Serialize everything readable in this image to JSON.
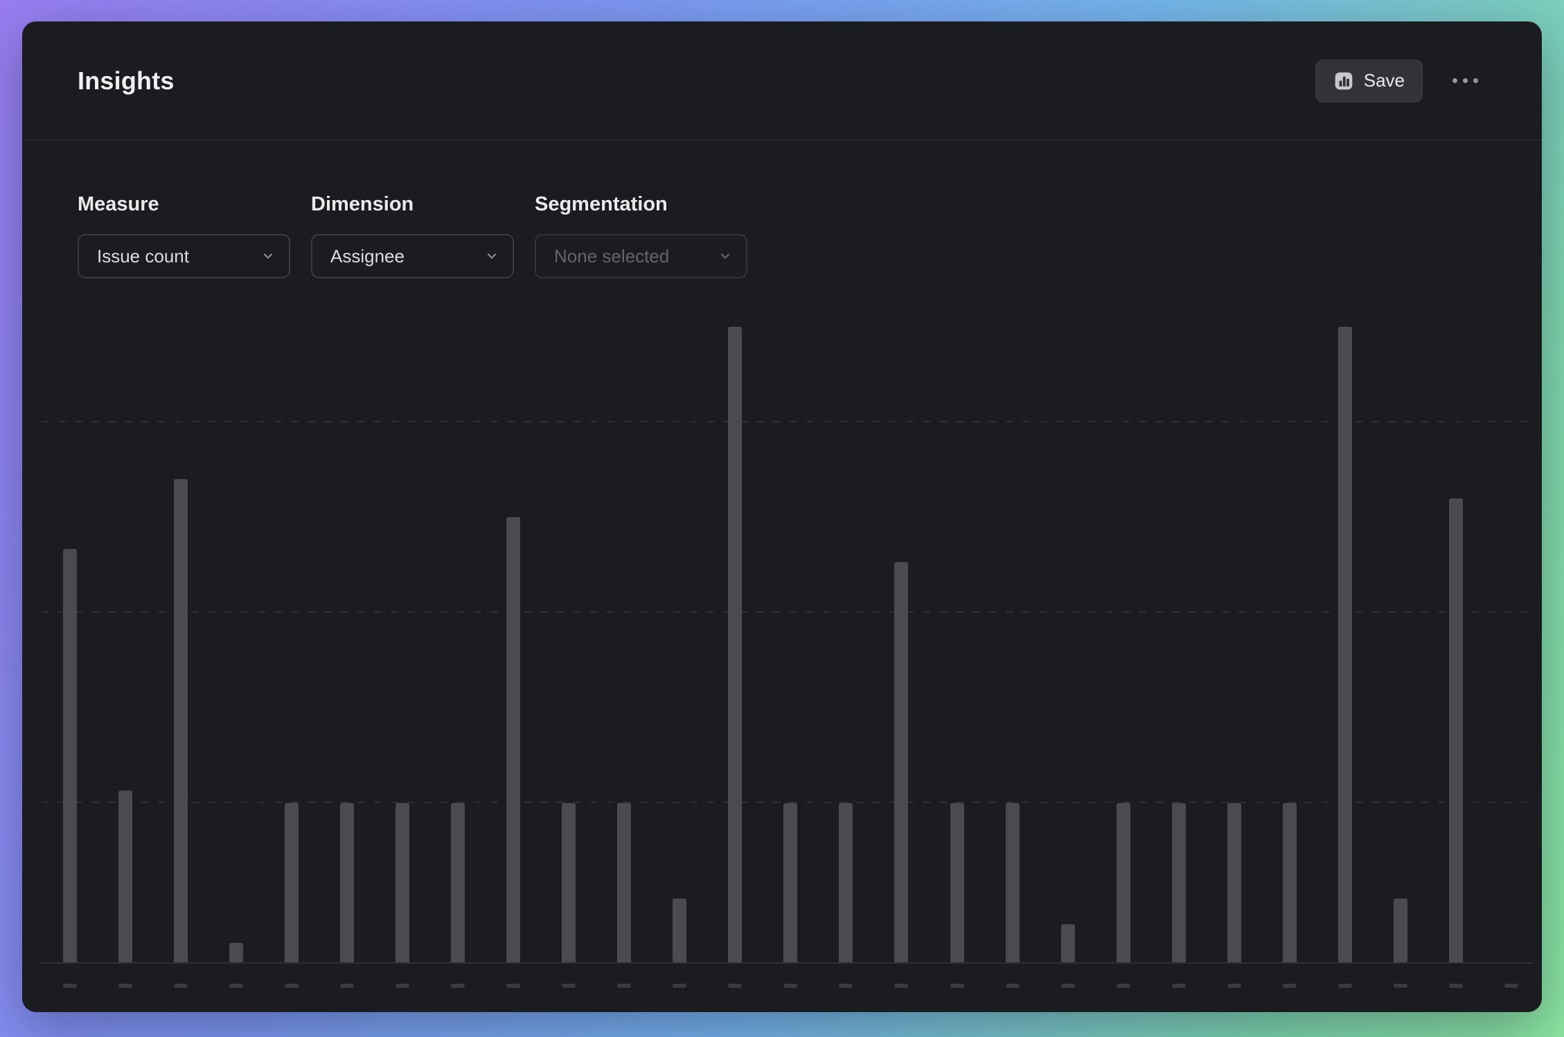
{
  "header": {
    "title": "Insights",
    "save_label": "Save"
  },
  "controls": {
    "measure": {
      "label": "Measure",
      "value": "Issue count"
    },
    "dimension": {
      "label": "Dimension",
      "value": "Assignee"
    },
    "segmentation": {
      "label": "Segmentation",
      "value": "None selected",
      "muted": true
    }
  },
  "icons": {
    "save": "bar-chart-icon",
    "more": "ellipsis-icon",
    "dropdowns": "chevron-down-icon"
  },
  "colors": {
    "panel_bg": "#1b1c1f",
    "divider": "#2b2d31",
    "bar": "#4a4b4f",
    "gridline": "#2e3034",
    "tick": "#3a3b3f",
    "text_primary": "#f0f0f2",
    "text_muted": "#63656b",
    "gradient_edge": [
      "#987df0",
      "#7d95f2",
      "#74b4ec",
      "#8ce6a0"
    ]
  },
  "chart_data": {
    "type": "bar",
    "title": "",
    "xlabel": "",
    "ylabel": "",
    "legend": "none",
    "grid": "dashed horizontal lines",
    "x_tick_style": "short dash marks, no text labels visible",
    "categories": [
      "",
      "",
      "",
      "",
      "",
      "",
      "",
      "",
      "",
      "",
      "",
      "",
      "",
      "",
      "",
      "",
      "",
      "",
      "",
      "",
      "",
      "",
      "",
      "",
      "",
      "",
      ""
    ],
    "values": [
      65,
      27,
      76,
      3,
      25,
      25,
      25,
      25,
      70,
      25,
      25,
      10,
      100,
      25,
      25,
      63,
      25,
      25,
      6,
      25,
      25,
      25,
      25,
      100,
      10,
      73,
      0
    ],
    "ylim": [
      0,
      105
    ],
    "gridlines": [
      25,
      55,
      85
    ],
    "note": "No numeric axis labels are visible; values are relative estimates (common short bars normalized to 25, tallest to 100). Final slot has a tick mark but a zero-height bar."
  }
}
